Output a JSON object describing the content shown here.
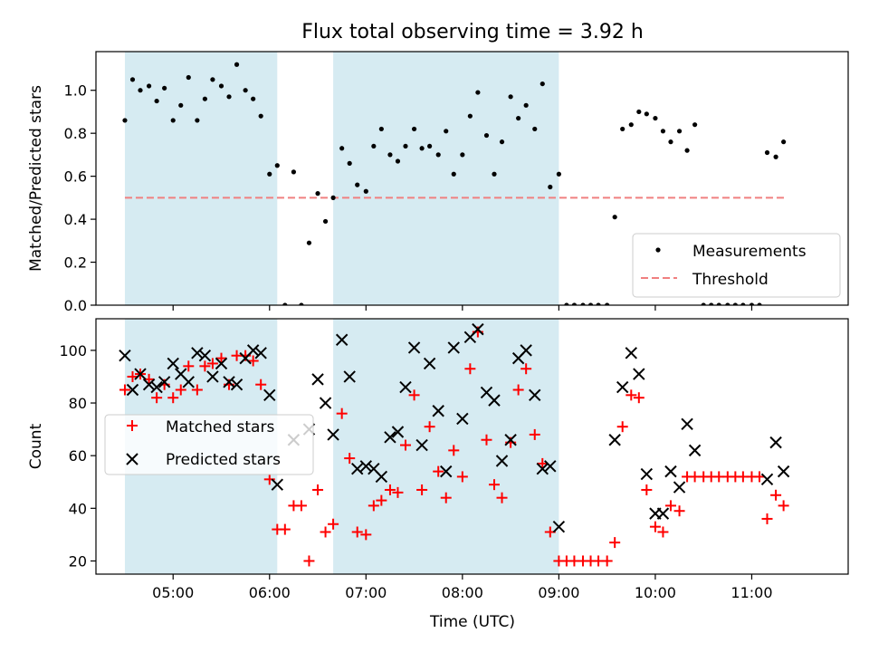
{
  "chart_data": {
    "title": "Flux total observing time = 3.92 h",
    "xlabel": "Time (UTC)",
    "x_unit": "hours UTC",
    "xlim": [
      4.2,
      12.0
    ],
    "xticks": [
      5,
      6,
      7,
      8,
      9,
      10,
      11
    ],
    "xtick_labels": [
      "05:00",
      "06:00",
      "07:00",
      "08:00",
      "09:00",
      "10:00",
      "11:00"
    ],
    "shaded_intervals": [
      [
        4.5,
        6.08
      ],
      [
        6.66,
        9.0
      ]
    ],
    "shade_color": "#add8e6",
    "panels": [
      {
        "type": "scatter",
        "ylabel": "Matched/Predicted stars",
        "ylim": [
          0,
          1.18
        ],
        "yticks": [
          0.0,
          0.2,
          0.4,
          0.6,
          0.8,
          1.0
        ],
        "ytick_labels": [
          "0.0",
          "0.2",
          "0.4",
          "0.6",
          "0.8",
          "1.0"
        ],
        "legend_position": "bottom-right",
        "threshold": {
          "name": "Threshold",
          "value": 0.5,
          "x": [
            4.5,
            11.35
          ],
          "color": "#f08080"
        },
        "series": [
          {
            "name": "Measurements",
            "color": "#000000",
            "points": [
              [
                4.5,
                0.86
              ],
              [
                4.58,
                1.05
              ],
              [
                4.66,
                1.0
              ],
              [
                4.75,
                1.02
              ],
              [
                4.83,
                0.95
              ],
              [
                4.91,
                1.01
              ],
              [
                5.0,
                0.86
              ],
              [
                5.08,
                0.93
              ],
              [
                5.16,
                1.06
              ],
              [
                5.25,
                0.86
              ],
              [
                5.33,
                0.96
              ],
              [
                5.41,
                1.05
              ],
              [
                5.5,
                1.02
              ],
              [
                5.58,
                0.97
              ],
              [
                5.66,
                1.12
              ],
              [
                5.75,
                1.0
              ],
              [
                5.83,
                0.96
              ],
              [
                5.91,
                0.88
              ],
              [
                6.0,
                0.61
              ],
              [
                6.08,
                0.65
              ],
              [
                6.16,
                0.0
              ],
              [
                6.25,
                0.62
              ],
              [
                6.33,
                0.0
              ],
              [
                6.41,
                0.29
              ],
              [
                6.5,
                0.52
              ],
              [
                6.58,
                0.39
              ],
              [
                6.66,
                0.5
              ],
              [
                6.75,
                0.73
              ],
              [
                6.83,
                0.66
              ],
              [
                6.91,
                0.56
              ],
              [
                7.0,
                0.53
              ],
              [
                7.08,
                0.74
              ],
              [
                7.16,
                0.82
              ],
              [
                7.25,
                0.7
              ],
              [
                7.33,
                0.67
              ],
              [
                7.41,
                0.74
              ],
              [
                7.5,
                0.82
              ],
              [
                7.58,
                0.73
              ],
              [
                7.66,
                0.74
              ],
              [
                7.75,
                0.7
              ],
              [
                7.83,
                0.81
              ],
              [
                7.91,
                0.61
              ],
              [
                8.0,
                0.7
              ],
              [
                8.08,
                0.88
              ],
              [
                8.16,
                0.99
              ],
              [
                8.25,
                0.79
              ],
              [
                8.33,
                0.61
              ],
              [
                8.41,
                0.76
              ],
              [
                8.5,
                0.97
              ],
              [
                8.58,
                0.87
              ],
              [
                8.66,
                0.93
              ],
              [
                8.75,
                0.82
              ],
              [
                8.83,
                1.03
              ],
              [
                8.91,
                0.55
              ],
              [
                9.0,
                0.61
              ],
              [
                9.08,
                0.0
              ],
              [
                9.16,
                0.0
              ],
              [
                9.25,
                0.0
              ],
              [
                9.33,
                0.0
              ],
              [
                9.41,
                0.0
              ],
              [
                9.5,
                0.0
              ],
              [
                9.58,
                0.41
              ],
              [
                9.66,
                0.82
              ],
              [
                9.75,
                0.84
              ],
              [
                9.83,
                0.9
              ],
              [
                9.91,
                0.89
              ],
              [
                10.0,
                0.87
              ],
              [
                10.08,
                0.81
              ],
              [
                10.16,
                0.76
              ],
              [
                10.25,
                0.81
              ],
              [
                10.33,
                0.72
              ],
              [
                10.41,
                0.84
              ],
              [
                10.5,
                0.0
              ],
              [
                10.58,
                0.0
              ],
              [
                10.66,
                0.0
              ],
              [
                10.75,
                0.0
              ],
              [
                10.83,
                0.0
              ],
              [
                10.91,
                0.0
              ],
              [
                11.0,
                0.0
              ],
              [
                11.08,
                0.0
              ],
              [
                11.16,
                0.71
              ],
              [
                11.25,
                0.69
              ],
              [
                11.33,
                0.76
              ]
            ]
          }
        ]
      },
      {
        "type": "scatter",
        "ylabel": "Count",
        "ylim": [
          15,
          112
        ],
        "yticks": [
          20,
          40,
          60,
          80,
          100
        ],
        "ytick_labels": [
          "20",
          "40",
          "60",
          "80",
          "100"
        ],
        "legend_position": "center-left",
        "series": [
          {
            "name": "Matched stars",
            "marker": "plus",
            "color": "#ff0000",
            "points": [
              [
                4.5,
                85
              ],
              [
                4.58,
                90
              ],
              [
                4.66,
                91
              ],
              [
                4.75,
                89
              ],
              [
                4.83,
                82
              ],
              [
                4.91,
                87
              ],
              [
                5.0,
                82
              ],
              [
                5.08,
                85
              ],
              [
                5.16,
                94
              ],
              [
                5.25,
                85
              ],
              [
                5.33,
                94
              ],
              [
                5.41,
                95
              ],
              [
                5.5,
                97
              ],
              [
                5.58,
                87
              ],
              [
                5.66,
                98
              ],
              [
                5.75,
                98
              ],
              [
                5.83,
                96
              ],
              [
                5.91,
                87
              ],
              [
                6.0,
                51
              ],
              [
                6.08,
                32
              ],
              [
                6.16,
                32
              ],
              [
                6.25,
                41
              ],
              [
                6.33,
                41
              ],
              [
                6.41,
                20
              ],
              [
                6.5,
                47
              ],
              [
                6.58,
                31
              ],
              [
                6.66,
                34
              ],
              [
                6.75,
                76
              ],
              [
                6.83,
                59
              ],
              [
                6.91,
                31
              ],
              [
                7.0,
                30
              ],
              [
                7.08,
                41
              ],
              [
                7.16,
                43
              ],
              [
                7.25,
                47
              ],
              [
                7.33,
                46
              ],
              [
                7.41,
                64
              ],
              [
                7.5,
                83
              ],
              [
                7.58,
                47
              ],
              [
                7.66,
                71
              ],
              [
                7.75,
                54
              ],
              [
                7.83,
                44
              ],
              [
                7.91,
                62
              ],
              [
                8.0,
                52
              ],
              [
                8.08,
                93
              ],
              [
                8.16,
                107
              ],
              [
                8.25,
                66
              ],
              [
                8.33,
                49
              ],
              [
                8.41,
                44
              ],
              [
                8.5,
                65
              ],
              [
                8.58,
                85
              ],
              [
                8.66,
                93
              ],
              [
                8.75,
                68
              ],
              [
                8.83,
                57
              ],
              [
                8.91,
                31
              ],
              [
                9.0,
                20
              ],
              [
                9.08,
                20
              ],
              [
                9.16,
                20
              ],
              [
                9.25,
                20
              ],
              [
                9.33,
                20
              ],
              [
                9.41,
                20
              ],
              [
                9.5,
                20
              ],
              [
                9.58,
                27
              ],
              [
                9.66,
                71
              ],
              [
                9.75,
                83
              ],
              [
                9.83,
                82
              ],
              [
                9.91,
                47
              ],
              [
                10.0,
                33
              ],
              [
                10.08,
                31
              ],
              [
                10.16,
                41
              ],
              [
                10.25,
                39
              ],
              [
                10.33,
                52
              ],
              [
                10.41,
                52
              ],
              [
                10.5,
                52
              ],
              [
                10.58,
                52
              ],
              [
                10.66,
                52
              ],
              [
                10.75,
                52
              ],
              [
                10.83,
                52
              ],
              [
                10.91,
                52
              ],
              [
                11.0,
                52
              ],
              [
                11.08,
                52
              ],
              [
                11.16,
                36
              ],
              [
                11.25,
                45
              ],
              [
                11.33,
                41
              ]
            ]
          },
          {
            "name": "Predicted stars",
            "marker": "x",
            "color": "#000000",
            "points": [
              [
                4.5,
                98
              ],
              [
                4.58,
                85
              ],
              [
                4.66,
                91
              ],
              [
                4.75,
                87
              ],
              [
                4.83,
                86
              ],
              [
                4.91,
                88
              ],
              [
                5.0,
                95
              ],
              [
                5.08,
                91
              ],
              [
                5.16,
                88
              ],
              [
                5.25,
                99
              ],
              [
                5.33,
                98
              ],
              [
                5.41,
                90
              ],
              [
                5.5,
                95
              ],
              [
                5.58,
                88
              ],
              [
                5.66,
                87
              ],
              [
                5.75,
                97
              ],
              [
                5.83,
                100
              ],
              [
                5.91,
                99
              ],
              [
                6.0,
                83
              ],
              [
                6.08,
                49
              ],
              [
                6.25,
                66
              ],
              [
                6.41,
                70
              ],
              [
                6.5,
                89
              ],
              [
                6.58,
                80
              ],
              [
                6.66,
                68
              ],
              [
                6.75,
                104
              ],
              [
                6.83,
                90
              ],
              [
                6.91,
                55
              ],
              [
                7.0,
                56
              ],
              [
                7.08,
                55
              ],
              [
                7.16,
                52
              ],
              [
                7.25,
                67
              ],
              [
                7.33,
                69
              ],
              [
                7.41,
                86
              ],
              [
                7.5,
                101
              ],
              [
                7.58,
                64
              ],
              [
                7.66,
                95
              ],
              [
                7.75,
                77
              ],
              [
                7.83,
                54
              ],
              [
                7.91,
                101
              ],
              [
                8.0,
                74
              ],
              [
                8.08,
                105
              ],
              [
                8.16,
                108
              ],
              [
                8.25,
                84
              ],
              [
                8.33,
                81
              ],
              [
                8.41,
                58
              ],
              [
                8.5,
                66
              ],
              [
                8.58,
                97
              ],
              [
                8.66,
                100
              ],
              [
                8.75,
                83
              ],
              [
                8.83,
                55
              ],
              [
                8.91,
                56
              ],
              [
                9.0,
                33
              ],
              [
                9.58,
                66
              ],
              [
                9.66,
                86
              ],
              [
                9.75,
                99
              ],
              [
                9.83,
                91
              ],
              [
                9.91,
                53
              ],
              [
                10.0,
                38
              ],
              [
                10.08,
                38
              ],
              [
                10.16,
                54
              ],
              [
                10.25,
                48
              ],
              [
                10.33,
                72
              ],
              [
                10.41,
                62
              ],
              [
                11.16,
                51
              ],
              [
                11.25,
                65
              ],
              [
                11.33,
                54
              ]
            ]
          }
        ]
      }
    ]
  }
}
